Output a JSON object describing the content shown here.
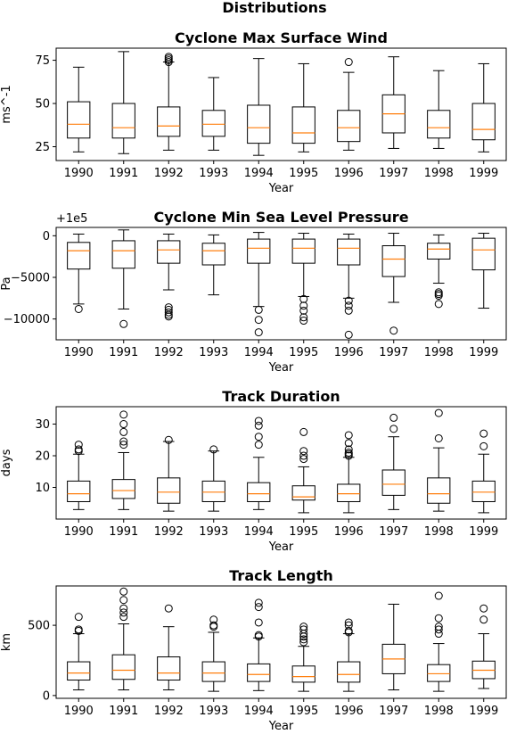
{
  "suptitle": "Distributions",
  "colors": {
    "median": "#ff7f0e",
    "box": "#000000"
  },
  "chart_data": [
    {
      "type": "box",
      "title": "Cyclone Max Surface Wind",
      "xlabel": "Year",
      "ylabel": "ms^-1",
      "offset_label": "",
      "categories": [
        "1990",
        "1991",
        "1992",
        "1993",
        "1994",
        "1995",
        "1996",
        "1997",
        "1998",
        "1999"
      ],
      "ylim": [
        17,
        82
      ],
      "yticks": [
        25,
        50,
        75
      ],
      "yticklabels": [
        "25",
        "50",
        "75"
      ],
      "boxes": [
        {
          "whislo": 22,
          "q1": 30,
          "med": 38,
          "q3": 51,
          "whishi": 71,
          "fliers": []
        },
        {
          "whislo": 21,
          "q1": 30,
          "med": 36,
          "q3": 50,
          "whishi": 80,
          "fliers": []
        },
        {
          "whislo": 23,
          "q1": 31,
          "med": 37,
          "q3": 48,
          "whishi": 74,
          "fliers": [
            74,
            75,
            76,
            77
          ]
        },
        {
          "whislo": 23,
          "q1": 31,
          "med": 38,
          "q3": 46,
          "whishi": 65,
          "fliers": []
        },
        {
          "whislo": 20,
          "q1": 27,
          "med": 36,
          "q3": 49,
          "whishi": 76,
          "fliers": []
        },
        {
          "whislo": 22,
          "q1": 27,
          "med": 33,
          "q3": 48,
          "whishi": 73,
          "fliers": []
        },
        {
          "whislo": 23,
          "q1": 28,
          "med": 36,
          "q3": 46,
          "whishi": 68,
          "fliers": [
            74
          ]
        },
        {
          "whislo": 24,
          "q1": 33,
          "med": 44,
          "q3": 55,
          "whishi": 77,
          "fliers": []
        },
        {
          "whislo": 24,
          "q1": 30,
          "med": 36,
          "q3": 46,
          "whishi": 69,
          "fliers": []
        },
        {
          "whislo": 22,
          "q1": 29,
          "med": 35,
          "q3": 50,
          "whishi": 73,
          "fliers": []
        }
      ]
    },
    {
      "type": "box",
      "title": "Cyclone Min Sea Level Pressure",
      "xlabel": "Year",
      "ylabel": "Pa",
      "offset_label": "+1e5",
      "categories": [
        "1990",
        "1991",
        "1992",
        "1993",
        "1994",
        "1995",
        "1996",
        "1997",
        "1998",
        "1999"
      ],
      "ylim": [
        -12500,
        1000
      ],
      "yticks": [
        0,
        -5000,
        -10000
      ],
      "yticklabels": [
        "0",
        "−5000",
        "−10000"
      ],
      "boxes": [
        {
          "whislo": -8200,
          "q1": -4000,
          "med": -1800,
          "q3": -800,
          "whishi": 200,
          "fliers": [
            -8800
          ]
        },
        {
          "whislo": -8800,
          "q1": -3900,
          "med": -1800,
          "q3": -600,
          "whishi": 700,
          "fliers": [
            -10600
          ]
        },
        {
          "whislo": -6500,
          "q1": -3300,
          "med": -1700,
          "q3": -600,
          "whishi": 200,
          "fliers": [
            -8600,
            -8900,
            -9200,
            -9500,
            -9700
          ]
        },
        {
          "whislo": -7100,
          "q1": -3500,
          "med": -1800,
          "q3": -900,
          "whishi": 100,
          "fliers": []
        },
        {
          "whislo": -8500,
          "q1": -3300,
          "med": -1500,
          "q3": -400,
          "whishi": 400,
          "fliers": [
            -8900,
            -10100,
            -11600
          ]
        },
        {
          "whislo": -7300,
          "q1": -3300,
          "med": -1500,
          "q3": -400,
          "whishi": 300,
          "fliers": [
            -7600,
            -8400,
            -9000,
            -9800,
            -10200
          ]
        },
        {
          "whislo": -7500,
          "q1": -3500,
          "med": -1500,
          "q3": -400,
          "whishi": 200,
          "fliers": [
            -7800,
            -8400,
            -9000,
            -11900
          ]
        },
        {
          "whislo": -8000,
          "q1": -4900,
          "med": -2800,
          "q3": -1200,
          "whishi": 300,
          "fliers": [
            -11400
          ]
        },
        {
          "whislo": -5700,
          "q1": -2800,
          "med": -1600,
          "q3": -900,
          "whishi": 100,
          "fliers": [
            -6800,
            -7000,
            -7200,
            -8200
          ]
        },
        {
          "whislo": -8700,
          "q1": -4100,
          "med": -1700,
          "q3": -300,
          "whishi": 300,
          "fliers": []
        }
      ]
    },
    {
      "type": "box",
      "title": "Track Duration",
      "xlabel": "Year",
      "ylabel": "days",
      "offset_label": "",
      "categories": [
        "1990",
        "1991",
        "1992",
        "1993",
        "1994",
        "1995",
        "1996",
        "1997",
        "1998",
        "1999"
      ],
      "ylim": [
        0,
        35.5
      ],
      "yticks": [
        10,
        20,
        30
      ],
      "yticklabels": [
        "10",
        "20",
        "30"
      ],
      "boxes": [
        {
          "whislo": 3,
          "q1": 5.5,
          "med": 8,
          "q3": 12,
          "whishi": 20.5,
          "fliers": [
            21.5,
            22,
            23.5
          ]
        },
        {
          "whislo": 3,
          "q1": 6.5,
          "med": 9,
          "q3": 12.5,
          "whishi": 21,
          "fliers": [
            23.5,
            24.5,
            27.5,
            30,
            33
          ]
        },
        {
          "whislo": 2.5,
          "q1": 5,
          "med": 8.5,
          "q3": 13,
          "whishi": 24.5,
          "fliers": [
            25
          ]
        },
        {
          "whislo": 2.5,
          "q1": 5.5,
          "med": 8.5,
          "q3": 12,
          "whishi": 21.5,
          "fliers": [
            22
          ]
        },
        {
          "whislo": 3,
          "q1": 5.5,
          "med": 8,
          "q3": 11.5,
          "whishi": 19.5,
          "fliers": [
            23.5,
            26,
            29.5,
            31
          ]
        },
        {
          "whislo": 2,
          "q1": 6,
          "med": 7,
          "q3": 10.5,
          "whishi": 16.5,
          "fliers": [
            19,
            20,
            21.5,
            27.5
          ]
        },
        {
          "whislo": 2,
          "q1": 5.5,
          "med": 8,
          "q3": 11,
          "whishi": 19.5,
          "fliers": [
            20,
            20.5,
            21,
            22,
            24,
            26.5
          ]
        },
        {
          "whislo": 3,
          "q1": 7.5,
          "med": 11,
          "q3": 15.5,
          "whishi": 26,
          "fliers": [
            28.5,
            32
          ]
        },
        {
          "whislo": 2.5,
          "q1": 5,
          "med": 8,
          "q3": 13,
          "whishi": 22.5,
          "fliers": [
            25.5,
            33.5
          ]
        },
        {
          "whislo": 2,
          "q1": 5.5,
          "med": 8.5,
          "q3": 12,
          "whishi": 20.5,
          "fliers": [
            23,
            27
          ]
        }
      ]
    },
    {
      "type": "box",
      "title": "Track Length",
      "xlabel": "Year",
      "ylabel": "km",
      "offset_label": "",
      "categories": [
        "1990",
        "1991",
        "1992",
        "1993",
        "1994",
        "1995",
        "1996",
        "1997",
        "1998",
        "1999"
      ],
      "ylim": [
        -20,
        780
      ],
      "yticks": [
        0,
        500
      ],
      "yticklabels": [
        "0",
        "500"
      ],
      "boxes": [
        {
          "whislo": 40,
          "q1": 110,
          "med": 160,
          "q3": 240,
          "whishi": 440,
          "fliers": [
            460,
            470,
            560
          ]
        },
        {
          "whislo": 40,
          "q1": 115,
          "med": 180,
          "q3": 290,
          "whishi": 510,
          "fliers": [
            560,
            590,
            620,
            680,
            740
          ]
        },
        {
          "whislo": 40,
          "q1": 110,
          "med": 160,
          "q3": 275,
          "whishi": 490,
          "fliers": [
            620
          ]
        },
        {
          "whislo": 30,
          "q1": 100,
          "med": 160,
          "q3": 240,
          "whishi": 450,
          "fliers": [
            490,
            500,
            540
          ]
        },
        {
          "whislo": 35,
          "q1": 100,
          "med": 150,
          "q3": 225,
          "whishi": 410,
          "fliers": [
            420,
            430,
            520,
            630,
            660
          ]
        },
        {
          "whislo": 30,
          "q1": 95,
          "med": 135,
          "q3": 210,
          "whishi": 350,
          "fliers": [
            380,
            400,
            420,
            440,
            470,
            490
          ]
        },
        {
          "whislo": 30,
          "q1": 95,
          "med": 150,
          "q3": 240,
          "whishi": 440,
          "fliers": [
            450,
            460,
            500,
            520
          ]
        },
        {
          "whislo": 40,
          "q1": 155,
          "med": 260,
          "q3": 365,
          "whishi": 650,
          "fliers": []
        },
        {
          "whislo": 30,
          "q1": 100,
          "med": 155,
          "q3": 220,
          "whishi": 370,
          "fliers": [
            440,
            470,
            490,
            550,
            710
          ]
        },
        {
          "whislo": 50,
          "q1": 120,
          "med": 180,
          "q3": 245,
          "whishi": 440,
          "fliers": [
            540,
            620
          ]
        }
      ]
    }
  ]
}
